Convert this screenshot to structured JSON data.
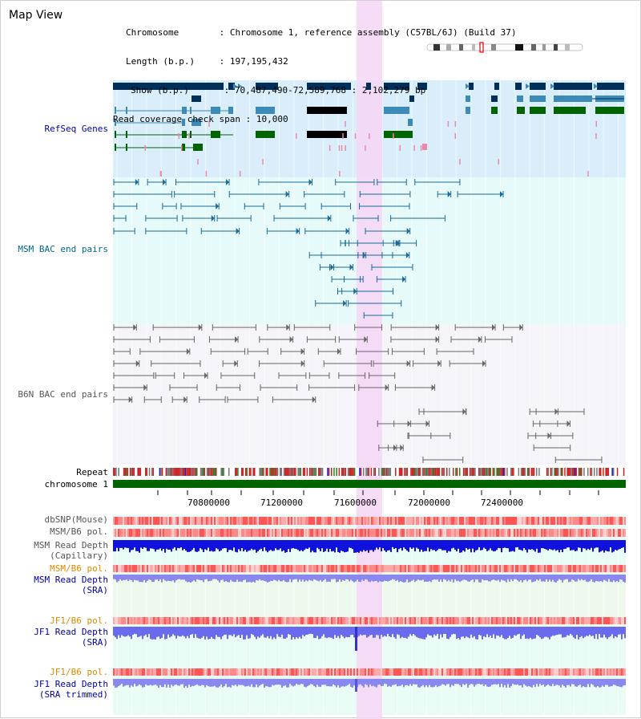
{
  "page": {
    "title": "Map View"
  },
  "info": {
    "chromosome_label": "Chromosome",
    "chromosome_value": "Chromosome 1, reference assembly (C57BL/6J) (Build 37)",
    "length_label": "Length (b.p.)",
    "length_value": "197,195,432",
    "show_label": "Show (b.p.)",
    "show_value": "70,487,490-72,589,768 : 2,102,279 bp",
    "coverage_label": "Read coverage check span",
    "coverage_value": "10,000"
  },
  "tracks": {
    "refseq": "RefSeq Genes",
    "msm_bac": "MSM BAC end pairs",
    "b6n_bac": "B6N BAC end pairs",
    "repeat": "Repeat",
    "chromosome": "chromosome 1",
    "dbsnp": "dbSNP(Mouse)",
    "msm_b6_pol_1": "MSM/B6 pol.",
    "msm_read_depth_cap_1": "MSM Read Depth",
    "msm_read_depth_cap_2": "(Capillary)",
    "msm_b6_pol_2": "MSM/B6 pol.",
    "msm_read_depth_sra_1": "MSM Read Depth",
    "msm_read_depth_sra_2": "(SRA)",
    "jf1_b6_pol_1": "JF1/B6 pol.",
    "jf1_read_depth_sra_1": "JF1 Read Depth",
    "jf1_read_depth_sra_2": "(SRA)",
    "jf1_b6_pol_2": "JF1/B6 pol.",
    "jf1_read_depth_trim_1": "JF1 Read Depth",
    "jf1_read_depth_trim_2": "(SRA trimmed)"
  },
  "axis": {
    "ticks": [
      "70800000",
      "71200000",
      "71600000",
      "72000000",
      "72400000"
    ]
  },
  "colors": {
    "refseq_bg": "#d9eefa",
    "msm_bg": "#e6fafa",
    "b6n_bg": "#f4f4fa",
    "highlight": "#f6d6f6",
    "label_blue": "#0000aa",
    "label_teal": "#00668a",
    "label_gray": "#555555",
    "label_orange": "#e08a00",
    "gene_dark": "#00305a",
    "gene_mid": "#3c8ab8",
    "gene_green": "#006400",
    "chrom_green": "#006400",
    "depth_blue": "#1111dd",
    "depth_light": "#7777ee"
  }
}
